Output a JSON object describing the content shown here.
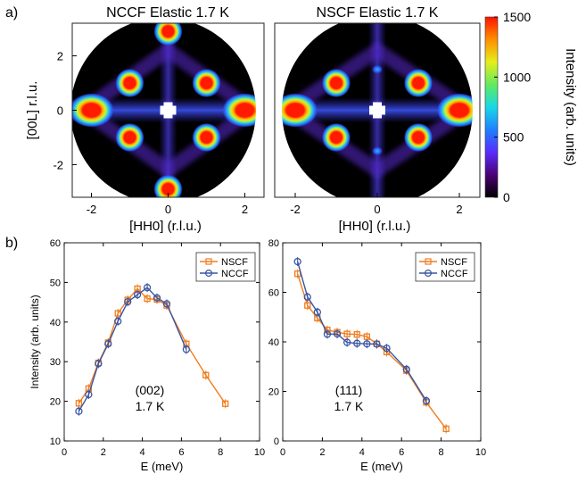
{
  "panel_labels": {
    "a": "a)",
    "b": "b)"
  },
  "colors": {
    "nscf": "#f07d1e",
    "nccf": "#3a55a2",
    "map_background": "#000000",
    "peak": "#ff1a00"
  },
  "chart_data": [
    {
      "type": "heatmap",
      "title": "NCCF Elastic 1.7 K",
      "xlabel": "[HH0] (r.l.u.)",
      "ylabel": "[00L] r.l.u.",
      "xticks": [
        "-2",
        "0",
        "2"
      ],
      "yticks": [
        "2",
        "0",
        "-2"
      ],
      "xlim": [
        -2.5,
        2.5
      ],
      "ylim": [
        -3.2,
        3.2
      ],
      "colormap": "jet-black",
      "clim": [
        0,
        1500
      ],
      "peaks_hh_l": [
        [
          0,
          2.9
        ],
        [
          0,
          -2.9
        ],
        [
          -1,
          1
        ],
        [
          1,
          1
        ],
        [
          -1,
          -1
        ],
        [
          1,
          -1
        ],
        [
          -2,
          0
        ],
        [
          2,
          0
        ]
      ],
      "beamstop": [
        0,
        0
      ]
    },
    {
      "type": "heatmap",
      "title": "NSCF Elastic 1.7 K",
      "xlabel": "[HH0] (r.l.u.)",
      "xticks": [
        "-2",
        "0",
        "2"
      ],
      "xlim": [
        -2.5,
        2.5
      ],
      "ylim": [
        -3.2,
        3.2
      ],
      "colormap": "jet-black",
      "clim": [
        0,
        1500
      ],
      "peaks_hh_l": [
        [
          -1,
          1
        ],
        [
          1,
          1
        ],
        [
          -1,
          -1
        ],
        [
          1,
          -1
        ],
        [
          -2,
          0
        ],
        [
          2,
          0
        ]
      ],
      "weak_peaks_hh_l": [
        [
          0,
          1.5
        ],
        [
          0,
          -1.5
        ]
      ],
      "beamstop": [
        0,
        0
      ],
      "colorbar": {
        "label": "Intensity (arb. units)",
        "ticks": [
          "1500",
          "1000",
          "500",
          "0"
        ],
        "range": [
          0,
          1500
        ]
      }
    },
    {
      "type": "line",
      "xlabel": "E (meV)",
      "ylabel": "Intensity (arb. units)",
      "xlim": [
        0,
        10
      ],
      "ylim": [
        10,
        60
      ],
      "xticks": [
        "0",
        "2",
        "4",
        "6",
        "8",
        "10"
      ],
      "yticks": [
        "10",
        "20",
        "30",
        "40",
        "50",
        "60"
      ],
      "legend": "top-right",
      "annotation": [
        "(002)",
        "1.7 K"
      ],
      "series": [
        {
          "name": "NSCF",
          "marker": "square",
          "x": [
            0.75,
            1.25,
            1.75,
            2.25,
            2.75,
            3.25,
            3.75,
            4.25,
            4.75,
            5.25,
            6.25,
            7.25,
            8.25
          ],
          "y": [
            19.5,
            23.2,
            29.7,
            34.8,
            42.2,
            45.6,
            48.4,
            45.9,
            45.7,
            44.2,
            34.5,
            26.6,
            19.4
          ]
        },
        {
          "name": "NCCF",
          "marker": "circle",
          "x": [
            0.75,
            1.25,
            1.75,
            2.25,
            2.75,
            3.25,
            3.75,
            4.25,
            4.75,
            5.25,
            6.25
          ],
          "y": [
            17.5,
            21.7,
            29.5,
            34.5,
            40.2,
            45.1,
            46.9,
            48.7,
            46.1,
            44.6,
            33.1
          ]
        }
      ]
    },
    {
      "type": "line",
      "xlabel": "E (meV)",
      "xlim": [
        0,
        10
      ],
      "ylim": [
        0,
        80
      ],
      "xticks": [
        "0",
        "2",
        "4",
        "6",
        "8",
        "10"
      ],
      "yticks": [
        "0",
        "20",
        "40",
        "60",
        "80"
      ],
      "legend": "top-right",
      "annotation": [
        "(111)",
        "1.7 K"
      ],
      "series": [
        {
          "name": "NSCF",
          "marker": "square",
          "x": [
            0.75,
            1.25,
            1.75,
            2.25,
            2.75,
            3.25,
            3.75,
            4.25,
            4.75,
            5.25,
            6.25,
            7.25,
            8.25
          ],
          "y": [
            67.5,
            54.7,
            49.6,
            44.8,
            43.9,
            43.2,
            43.0,
            42.1,
            39.2,
            35.9,
            28.4,
            15.6,
            4.9
          ]
        },
        {
          "name": "NCCF",
          "marker": "circle",
          "x": [
            0.75,
            1.25,
            1.75,
            2.25,
            2.75,
            3.25,
            3.75,
            4.25,
            4.75,
            5.25,
            6.25,
            7.25
          ],
          "y": [
            72.4,
            58.1,
            52.0,
            43.1,
            43.2,
            39.8,
            39.4,
            39.2,
            39.1,
            37.4,
            28.9,
            16.2
          ]
        }
      ]
    }
  ]
}
